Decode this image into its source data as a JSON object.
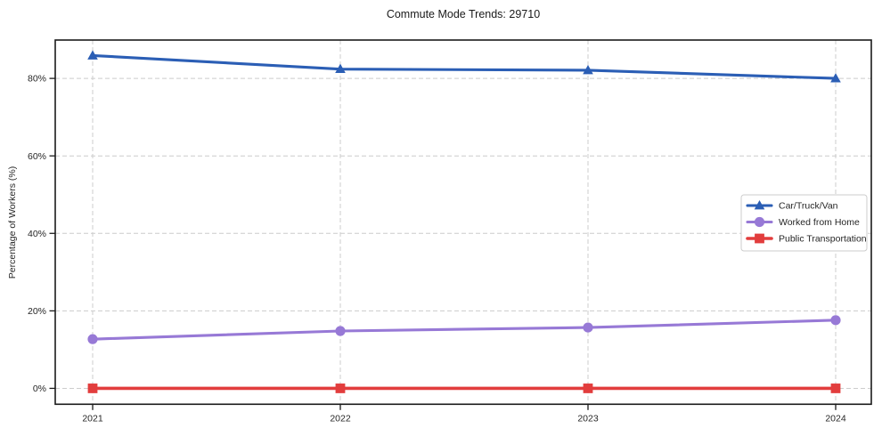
{
  "page": {
    "background": "#ffffff",
    "text_color": "#262626"
  },
  "chart_data": {
    "type": "line",
    "title": "Commute Mode Trends: 29710",
    "xlabel": "",
    "ylabel": "Percentage of Workers (%)",
    "categories": [
      "2021",
      "2022",
      "2023",
      "2024"
    ],
    "y_ticks": [
      "0%",
      "20%",
      "40%",
      "60%",
      "80%"
    ],
    "y_tick_values": [
      0,
      20,
      40,
      60,
      80
    ],
    "ylim": [
      -4.1,
      89.9
    ],
    "grid": true,
    "grid_color": "#cccccc",
    "axis_color": "#1a1a1a",
    "legend_position": "center-right",
    "series": [
      {
        "name": "Car/Truck/Van",
        "marker": "triangle",
        "color": "#2b5eb5",
        "values": [
          85.9,
          82.4,
          82.1,
          80.0
        ]
      },
      {
        "name": "Worked from Home",
        "marker": "circle",
        "color": "#9779d6",
        "values": [
          12.7,
          14.8,
          15.7,
          17.6
        ]
      },
      {
        "name": "Public Transportation",
        "marker": "square",
        "color": "#e23d3d",
        "values": [
          0.0,
          0.0,
          0.0,
          0.0
        ]
      }
    ]
  }
}
